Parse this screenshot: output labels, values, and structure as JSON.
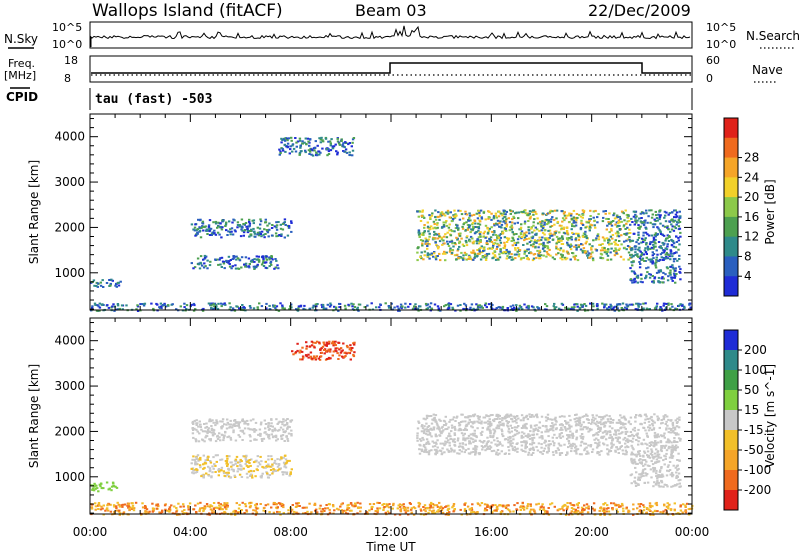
{
  "header": {
    "station": "Wallops Island (fitACF)",
    "beam": "Beam 03",
    "date": "22/Dec/2009"
  },
  "status_panels": {
    "nsky_label": "N.Sky",
    "nsky_ticks": [
      "10^5",
      "10^0"
    ],
    "nsearch_label": "N.Search",
    "nsearch_ticks": [
      "10^5",
      "10^0"
    ],
    "freq_label": "Freq.",
    "freq_unit": "[MHz]",
    "freq_ticks": [
      "18",
      "8"
    ],
    "nave_label": "Nave",
    "nave_ticks": [
      "60",
      "0"
    ],
    "cpid_label": "CPID",
    "cpid_text": "tau (fast) -503"
  },
  "x_axis": {
    "label": "Time UT",
    "ticks": [
      "00:00",
      "04:00",
      "08:00",
      "12:00",
      "16:00",
      "20:00",
      "00:00"
    ],
    "range_hours": [
      0,
      24
    ]
  },
  "chart_data": [
    {
      "type": "heatmap",
      "panel": "power",
      "ylabel": "Slant Range [km]",
      "yticks": [
        1000,
        2000,
        3000,
        4000
      ],
      "ylim": [
        180,
        4500
      ],
      "colorbar": {
        "label": "Power [dB]",
        "ticks": [
          "4",
          "8",
          "12",
          "16",
          "20",
          "24",
          "28"
        ],
        "colors": [
          "#1f2cd6",
          "#2a5fbf",
          "#2f8a8a",
          "#4da050",
          "#8cc94a",
          "#f2d12a",
          "#f5a528",
          "#ef6a1e",
          "#e0221a"
        ]
      },
      "echo_regions": [
        {
          "t_start": 0.0,
          "t_end": 24.0,
          "range_min": 180,
          "range_max": 350,
          "level": "mixed"
        },
        {
          "t_start": 0.0,
          "t_end": 1.2,
          "range_min": 700,
          "range_max": 900,
          "level": "4-8"
        },
        {
          "t_start": 4.0,
          "t_end": 7.5,
          "range_min": 1100,
          "range_max": 1400,
          "level": "4-12"
        },
        {
          "t_start": 4.0,
          "t_end": 8.0,
          "range_min": 1800,
          "range_max": 2200,
          "level": "4-8"
        },
        {
          "t_start": 7.5,
          "t_end": 10.5,
          "range_min": 3600,
          "range_max": 4000,
          "level": "4"
        },
        {
          "t_start": 13.0,
          "t_end": 21.5,
          "range_min": 1300,
          "range_max": 2400,
          "level": "8-24"
        },
        {
          "t_start": 21.5,
          "t_end": 23.5,
          "range_min": 800,
          "range_max": 2400,
          "level": "4-12"
        }
      ]
    },
    {
      "type": "heatmap",
      "panel": "velocity",
      "ylabel": "Slant Range [km]",
      "yticks": [
        1000,
        2000,
        3000,
        4000
      ],
      "ylim": [
        180,
        4500
      ],
      "colorbar": {
        "label": "Velocity [m s^-1]",
        "ticks": [
          "200",
          "100",
          "50",
          "15",
          "-15",
          "-50",
          "-100",
          "-200"
        ],
        "colors": [
          "#1f2cd6",
          "#2f8a8a",
          "#3fa046",
          "#7fcf3f",
          "#c8c8c8",
          "#f2c02a",
          "#f5a528",
          "#ef6a1e",
          "#e0221a"
        ]
      },
      "echo_regions": [
        {
          "t_start": 0.0,
          "t_end": 24.0,
          "range_min": 180,
          "range_max": 450,
          "level": "-15 to -100"
        },
        {
          "t_start": 0.0,
          "t_end": 1.2,
          "range_min": 700,
          "range_max": 900,
          "level": "15 to 50"
        },
        {
          "t_start": 4.0,
          "t_end": 8.0,
          "range_min": 1000,
          "range_max": 1500,
          "level": "-15 to -50"
        },
        {
          "t_start": 4.0,
          "t_end": 8.0,
          "range_min": 1800,
          "range_max": 2300,
          "level": "-15 to 15"
        },
        {
          "t_start": 8.0,
          "t_end": 10.5,
          "range_min": 3600,
          "range_max": 4000,
          "level": "-100 to -200"
        },
        {
          "t_start": 13.0,
          "t_end": 21.5,
          "range_min": 1500,
          "range_max": 2400,
          "level": "-15 to 15"
        },
        {
          "t_start": 21.5,
          "t_end": 23.5,
          "range_min": 800,
          "range_max": 2400,
          "level": "-15 to 15"
        }
      ]
    }
  ]
}
